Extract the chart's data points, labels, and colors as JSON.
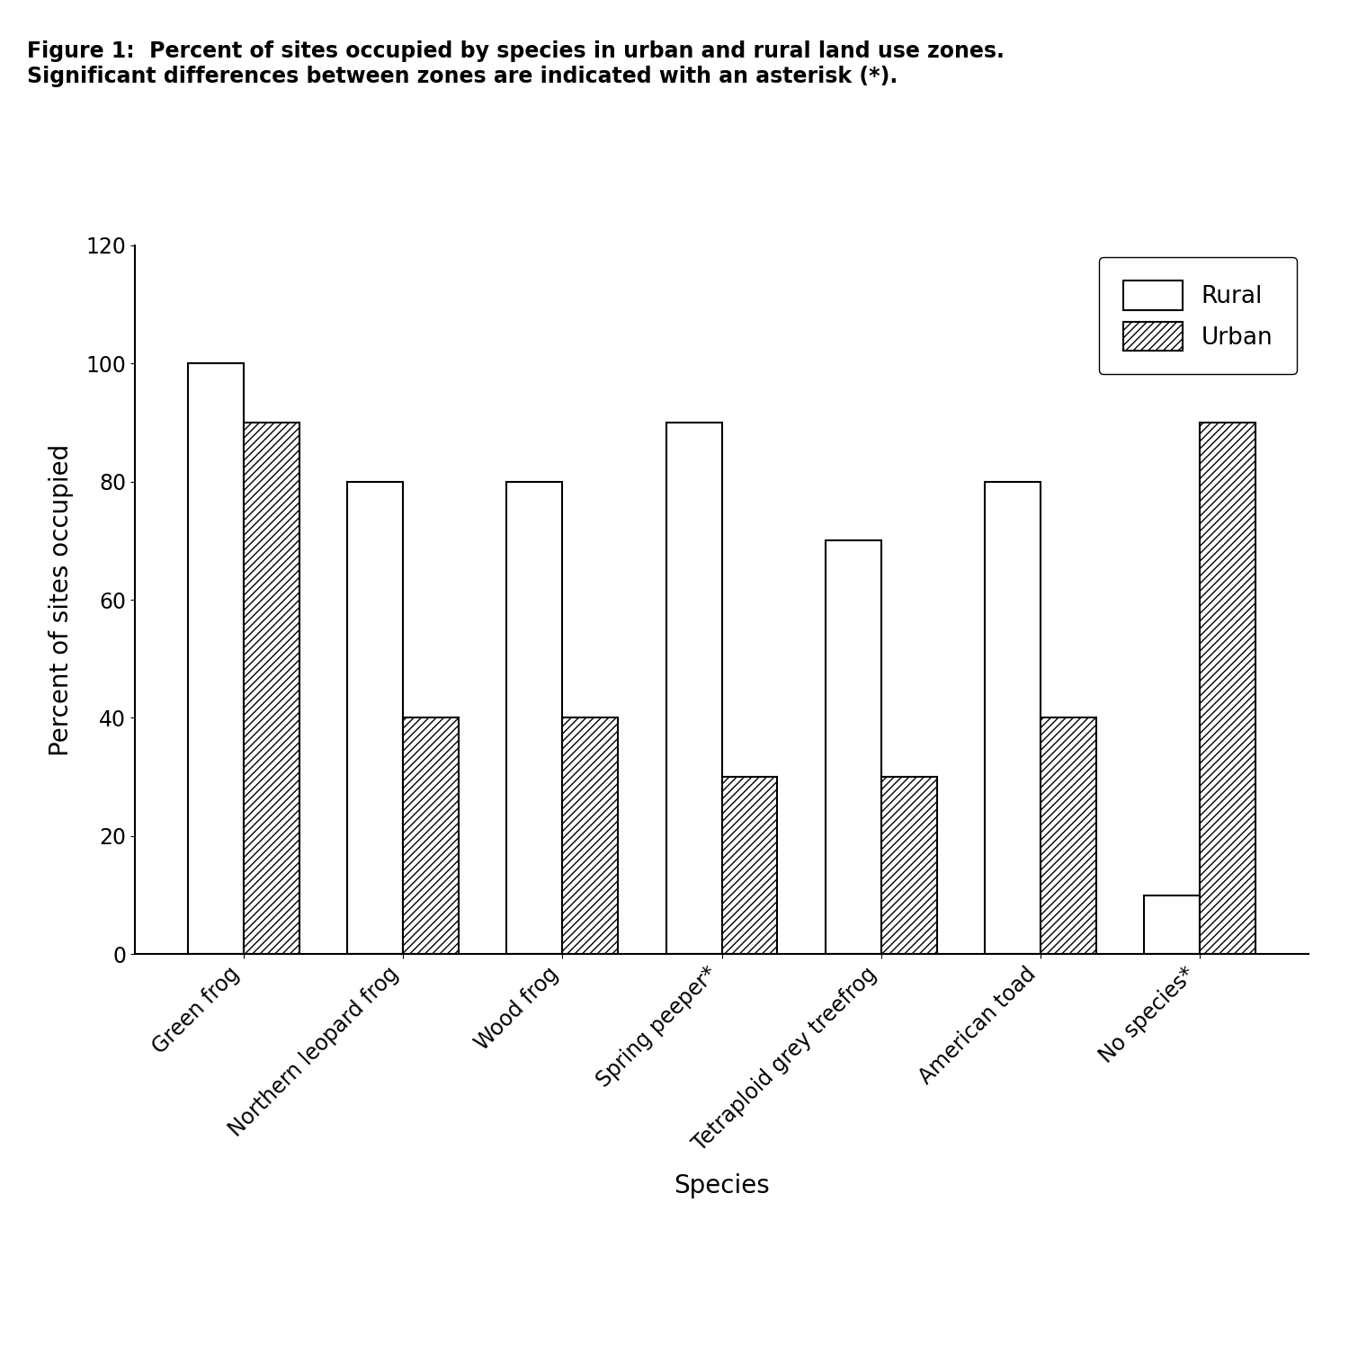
{
  "title_line1": "Figure 1:  Percent of sites occupied by species in urban and rural land use zones.",
  "title_line2": "Significant differences between zones are indicated with an asterisk (*).",
  "xlabel": "Species",
  "ylabel": "Percent of sites occupied",
  "categories": [
    "Green frog",
    "Northern leopard frog",
    "Wood frog",
    "Spring peeper*",
    "Tetraploid grey treefrog",
    "American toad",
    "No species*"
  ],
  "rural_values": [
    100,
    80,
    80,
    90,
    70,
    80,
    10
  ],
  "urban_values": [
    90,
    40,
    40,
    30,
    30,
    40,
    90
  ],
  "ylim": [
    0,
    120
  ],
  "yticks": [
    0,
    20,
    40,
    60,
    80,
    100,
    120
  ],
  "bar_width": 0.35,
  "rural_color": "#ffffff",
  "urban_color": "#ffffff",
  "edge_color": "#000000",
  "hatch_pattern": "////",
  "legend_labels": [
    "Rural",
    "Urban"
  ],
  "title_fontsize": 17,
  "axis_label_fontsize": 20,
  "tick_fontsize": 17,
  "legend_fontsize": 19,
  "background_color": "#ffffff"
}
